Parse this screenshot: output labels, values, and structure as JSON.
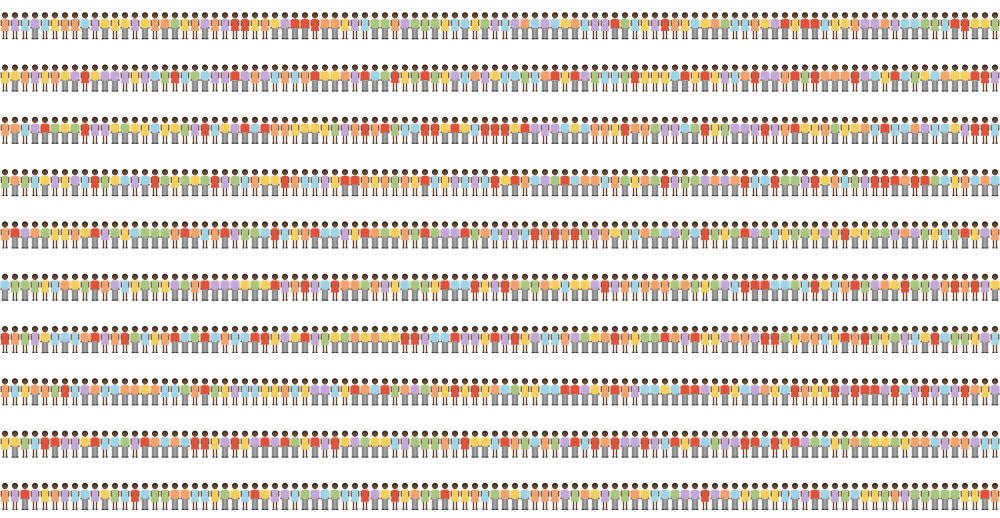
{
  "figure": {
    "rows": 10,
    "figures_per_row": 100,
    "figure_types": [
      "man",
      "woman"
    ],
    "palette": {
      "red": "#e0533a",
      "orange": "#f2a36b",
      "yellow": "#f5cf5c",
      "green": "#a9c77e",
      "blue": "#9fd3e6",
      "purple": "#c3a9d8",
      "trousers": "#8c8c8c",
      "skin": "#6b4a32",
      "hair": "#2b1d14"
    },
    "shirt_colors": [
      "red",
      "orange",
      "yellow",
      "green",
      "blue",
      "purple"
    ]
  }
}
